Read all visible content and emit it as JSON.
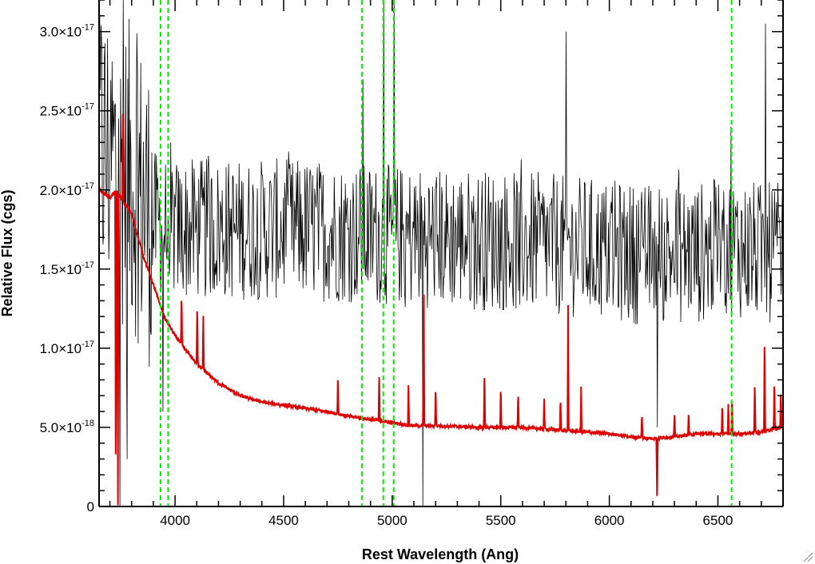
{
  "chart_data": {
    "type": "line",
    "xlabel": "Rest Wavelength (Ang)",
    "ylabel": "Relative Flux (cgs)",
    "xlim": [
      3650,
      6800
    ],
    "ylim": [
      0,
      3.2e-17
    ],
    "x_ticks": [
      4000,
      4500,
      5000,
      5500,
      6000,
      6500
    ],
    "x_tick_labels": [
      "4000",
      "4500",
      "5000",
      "5500",
      "6000",
      "6500"
    ],
    "y_ticks": [
      0,
      5e-18,
      1e-17,
      1.5e-17,
      2e-17,
      2.5e-17,
      3e-17
    ],
    "y_tick_labels": [
      {
        "mant": "0",
        "exp": ""
      },
      {
        "mant": "5.0×10",
        "exp": "-18"
      },
      {
        "mant": "1.0×10",
        "exp": "-17"
      },
      {
        "mant": "1.5×10",
        "exp": "-17"
      },
      {
        "mant": "2.0×10",
        "exp": "-17"
      },
      {
        "mant": "2.5×10",
        "exp": "-17"
      },
      {
        "mant": "3.0×10",
        "exp": "-17"
      }
    ],
    "grid": false,
    "vertical_lines": {
      "style": "dashed",
      "color": "#00ee00",
      "x": [
        3933,
        3968,
        4861,
        4959,
        5007,
        6563
      ]
    },
    "series": [
      {
        "color": "#000000",
        "style": "noisy spectrum",
        "continuum": {
          "x": [
            3650,
            3750,
            3800,
            3900,
            4000,
            4300,
            4600,
            4900,
            5200,
            5500,
            5800,
            6100,
            6400,
            6550,
            6700,
            6800
          ],
          "y": [
            2.3e-17,
            2.1e-17,
            2.1e-17,
            1.8e-17,
            1.75e-17,
            1.75e-17,
            1.75e-17,
            1.72e-17,
            1.7e-17,
            1.68e-17,
            1.65e-17,
            1.6e-17,
            1.6e-17,
            1.65e-17,
            1.6e-17,
            1.6e-17
          ]
        },
        "noise_amplitude": 4.5e-18,
        "features": [
          {
            "x": 3745,
            "y": 0
          },
          {
            "x": 3760,
            "y": 3.2e-17
          },
          {
            "x": 3780,
            "y": 3e-18
          },
          {
            "x": 3945,
            "y": 6e-18
          },
          {
            "x": 4865,
            "y": 2.7e-17
          },
          {
            "x": 4960,
            "y": 3.2e-17
          },
          {
            "x": 5010,
            "y": 3.2e-17
          },
          {
            "x": 5140,
            "y": 0
          },
          {
            "x": 5800,
            "y": 3e-17
          },
          {
            "x": 6220,
            "y": 5e-18
          },
          {
            "x": 6560,
            "y": 2.4e-17
          },
          {
            "x": 6720,
            "y": 3.05e-17
          }
        ]
      },
      {
        "color": "#dd0000",
        "style": "smooth continuum with emission lines",
        "continuum": {
          "x": [
            3650,
            3700,
            3730,
            3750,
            3800,
            3850,
            3900,
            3950,
            4000,
            4100,
            4200,
            4300,
            4400,
            4500,
            4600,
            4700,
            4800,
            4900,
            5000,
            5100,
            5200,
            5400,
            5600,
            5800,
            6000,
            6100,
            6200,
            6300,
            6400,
            6500,
            6600,
            6700,
            6800
          ],
          "y": [
            2e-17,
            1.95e-17,
            2e-17,
            1.95e-17,
            1.85e-17,
            1.6e-17,
            1.4e-17,
            1.2e-17,
            1.08e-17,
            9e-18,
            7.8e-18,
            7e-18,
            6.6e-18,
            6.4e-18,
            6.2e-18,
            6e-18,
            5.7e-18,
            5.5e-18,
            5.3e-18,
            5.1e-18,
            5.1e-18,
            5e-18,
            5e-18,
            4.8e-18,
            4.6e-18,
            4.4e-18,
            4.3e-18,
            4.4e-18,
            4.6e-18,
            4.6e-18,
            4.6e-18,
            4.7e-18,
            5e-18
          ]
        },
        "noise_amplitude": 9e-20,
        "emission_lines": [
          {
            "x": 3727,
            "y": 0
          },
          {
            "x": 3737,
            "y": 0
          },
          {
            "x": 3760,
            "y": 2.6e-17
          },
          {
            "x": 4030,
            "y": 1.35e-17
          },
          {
            "x": 4102,
            "y": 1.3e-17
          },
          {
            "x": 4130,
            "y": 1.2e-17
          },
          {
            "x": 4340,
            "y": 6.8e-18
          },
          {
            "x": 4750,
            "y": 8.4e-18
          },
          {
            "x": 4940,
            "y": 8.2e-18
          },
          {
            "x": 5075,
            "y": 7.6e-18
          },
          {
            "x": 5145,
            "y": 1.5e-17
          },
          {
            "x": 5200,
            "y": 7.7e-18
          },
          {
            "x": 5425,
            "y": 8.7e-18
          },
          {
            "x": 5500,
            "y": 7.7e-18
          },
          {
            "x": 5580,
            "y": 7.4e-18
          },
          {
            "x": 5700,
            "y": 7.1e-18
          },
          {
            "x": 5775,
            "y": 7e-18
          },
          {
            "x": 5810,
            "y": 1.27e-17
          },
          {
            "x": 5870,
            "y": 7.5e-18
          },
          {
            "x": 6150,
            "y": 6e-18
          },
          {
            "x": 6220,
            "y": 0
          },
          {
            "x": 6300,
            "y": 6e-18
          },
          {
            "x": 6365,
            "y": 5.8e-18
          },
          {
            "x": 6520,
            "y": 6.6e-18
          },
          {
            "x": 6548,
            "y": 6.5e-18
          },
          {
            "x": 6565,
            "y": 7e-18
          },
          {
            "x": 6670,
            "y": 8e-18
          },
          {
            "x": 6715,
            "y": 1.12e-17
          },
          {
            "x": 6760,
            "y": 8.2e-18
          },
          {
            "x": 6790,
            "y": 7.5e-18
          }
        ]
      }
    ]
  }
}
